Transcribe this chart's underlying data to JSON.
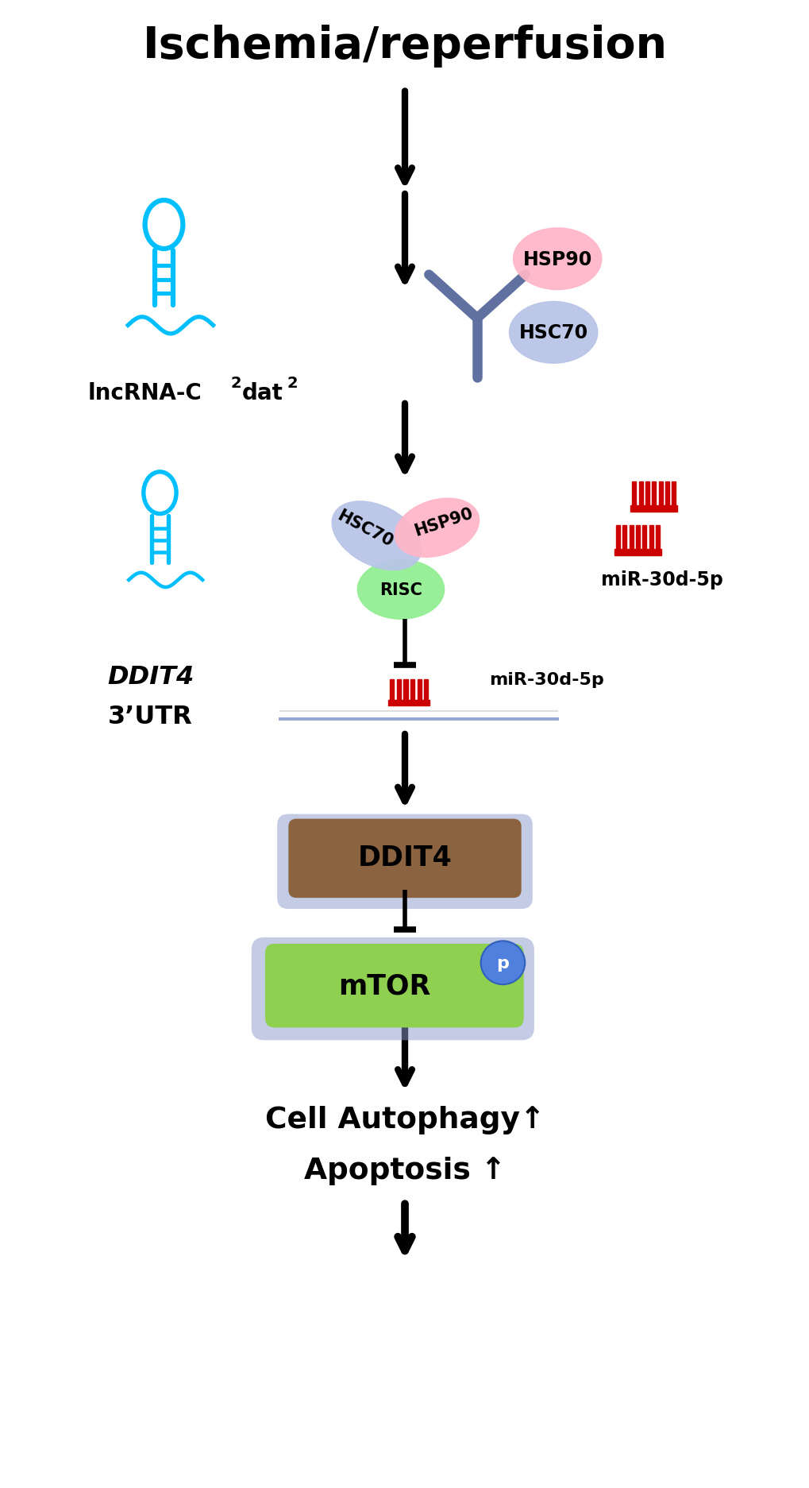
{
  "title": "Ischemia/reperfusion",
  "bgcolor": "#ffffff",
  "figsize": [
    10.2,
    18.74
  ],
  "dpi": 100,
  "labels": {
    "lncrna": "lncRNA-C",
    "lncrna_sub1": "2",
    "lncrna_dat": "dat",
    "lncrna_sub2": "2",
    "hsp90": "HSP90",
    "hsc70": "HSC70",
    "risc": "RISC",
    "mir": "miR-30d-5p",
    "ddit4_gene": "DDIT4",
    "utr": "3’UTR",
    "ddit4_box": "DDIT4",
    "mtor": "mTOR",
    "p": "p",
    "autophagy": "Cell Autophagy↑",
    "apoptosis": "Apoptosis ↑"
  },
  "colors": {
    "black": "#000000",
    "cyan": "#00BFFF",
    "pink": "#FFB6C8",
    "lavender": "#B8C4E8",
    "green_light": "#90EE90",
    "red": "#CC0000",
    "brown": "#8B6340",
    "green_box": "#90D050",
    "blue_glow": "#7080BB",
    "blue_p": "#5080DD",
    "white": "#FFFFFF",
    "fork_color": "#6070A0",
    "mtor_shadow": "#8898CC"
  }
}
